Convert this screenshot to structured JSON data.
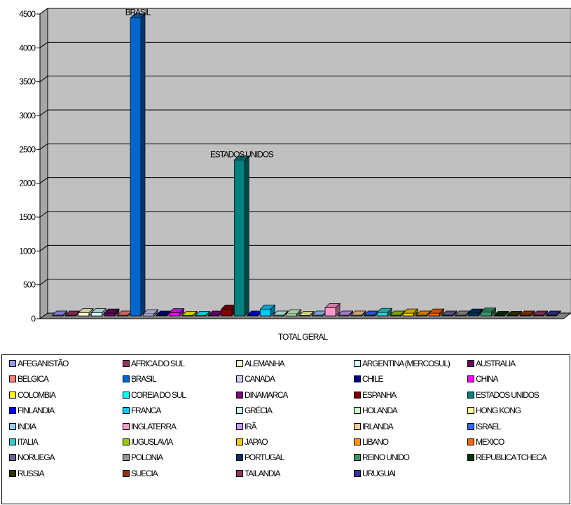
{
  "chart_data": {
    "type": "bar",
    "title": "",
    "xlabel": "TOTAL GERAL",
    "ylabel": "",
    "ylim": [
      0,
      4500
    ],
    "yticks": [
      0,
      500,
      1000,
      1500,
      2000,
      2500,
      3000,
      3500,
      4000,
      4500
    ],
    "grid": true,
    "legend_position": "bottom",
    "categories": [
      "TOTAL GERAL"
    ],
    "series": [
      {
        "name": "AFEGANISTÃO",
        "values": [
          10
        ],
        "color": "#9999ff"
      },
      {
        "name": "AFRICA DO SUL",
        "values": [
          10
        ],
        "color": "#993366"
      },
      {
        "name": "ALEMANHA",
        "values": [
          45
        ],
        "color": "#ffffcc"
      },
      {
        "name": "ARGENTINA (MERCOSUL)",
        "values": [
          45
        ],
        "color": "#ccffff"
      },
      {
        "name": "AUSTRALIA",
        "values": [
          40
        ],
        "color": "#660066"
      },
      {
        "name": "BELGICA",
        "values": [
          10
        ],
        "color": "#ff8080"
      },
      {
        "name": "BRASIL",
        "values": [
          4400
        ],
        "color": "#0066cc"
      },
      {
        "name": "CANADA",
        "values": [
          30
        ],
        "color": "#ccccff"
      },
      {
        "name": "CHILE",
        "values": [
          10
        ],
        "color": "#000080"
      },
      {
        "name": "CHINA",
        "values": [
          45
        ],
        "color": "#ff00ff"
      },
      {
        "name": "COLOMBIA",
        "values": [
          5
        ],
        "color": "#ffff00"
      },
      {
        "name": "COREIA DO SUL",
        "values": [
          5
        ],
        "color": "#00ffff"
      },
      {
        "name": "DINAMARCA",
        "values": [
          10
        ],
        "color": "#800080"
      },
      {
        "name": "ESPANHA",
        "values": [
          100
        ],
        "color": "#800000"
      },
      {
        "name": "ESTADOS UNIDOS",
        "values": [
          2300
        ],
        "color": "#008080"
      },
      {
        "name": "FINLANDIA",
        "values": [
          10
        ],
        "color": "#0000ff"
      },
      {
        "name": "FRANCA",
        "values": [
          100
        ],
        "color": "#00ccff"
      },
      {
        "name": "GRÉCIA",
        "values": [
          10
        ],
        "color": "#ccffff"
      },
      {
        "name": "HOLANDA",
        "values": [
          30
        ],
        "color": "#ccffcc"
      },
      {
        "name": "HONG KONG",
        "values": [
          5
        ],
        "color": "#ffff99"
      },
      {
        "name": "INDIA",
        "values": [
          10
        ],
        "color": "#99ccff"
      },
      {
        "name": "INGLATERRA",
        "values": [
          120
        ],
        "color": "#ff99cc"
      },
      {
        "name": "IRÃ",
        "values": [
          10
        ],
        "color": "#cc99ff"
      },
      {
        "name": "IRLANDA",
        "values": [
          10
        ],
        "color": "#ffcc99"
      },
      {
        "name": "ISRAEL",
        "values": [
          10
        ],
        "color": "#3366ff"
      },
      {
        "name": "ITALIA",
        "values": [
          50
        ],
        "color": "#33cccc"
      },
      {
        "name": "IUGUSLAVIA",
        "values": [
          10
        ],
        "color": "#99cc00"
      },
      {
        "name": "JAPAO",
        "values": [
          40
        ],
        "color": "#ffcc00"
      },
      {
        "name": "LIBANO",
        "values": [
          10
        ],
        "color": "#ff9900"
      },
      {
        "name": "MEXICO",
        "values": [
          40
        ],
        "color": "#ff6600"
      },
      {
        "name": "NORUEGA",
        "values": [
          10
        ],
        "color": "#666699"
      },
      {
        "name": "POLONIA",
        "values": [
          10
        ],
        "color": "#969696"
      },
      {
        "name": "PORTUGAL",
        "values": [
          40
        ],
        "color": "#003366"
      },
      {
        "name": "REINO UNIDO",
        "values": [
          55
        ],
        "color": "#339966"
      },
      {
        "name": "REPUBLICA TCHECA",
        "values": [
          5
        ],
        "color": "#003300"
      },
      {
        "name": "RUSSIA",
        "values": [
          5
        ],
        "color": "#333300"
      },
      {
        "name": "SUECIA",
        "values": [
          10
        ],
        "color": "#993300"
      },
      {
        "name": "TAILANDIA",
        "values": [
          10
        ],
        "color": "#993366"
      },
      {
        "name": "URUGUAI",
        "values": [
          10
        ],
        "color": "#333399"
      }
    ],
    "annotations": [
      {
        "series": "BRASIL",
        "text": "BRASIL"
      },
      {
        "series": "ESTADOS UNIDOS",
        "text": "ESTADOS UNIDOS"
      }
    ]
  }
}
